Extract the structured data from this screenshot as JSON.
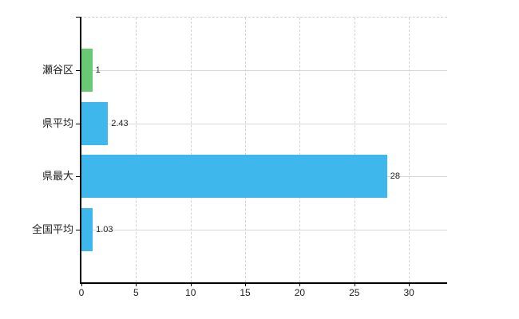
{
  "chart_data": {
    "type": "bar",
    "orientation": "horizontal",
    "title": "",
    "xlabel": "",
    "ylabel": "",
    "categories": [
      "瀬谷区",
      "県平均",
      "県最大",
      "全国平均"
    ],
    "values": [
      1,
      2.43,
      28,
      1.03
    ],
    "value_labels": [
      "1",
      "2.43",
      "28",
      "1.03"
    ],
    "bar_colors": [
      "#69c873",
      "#3eb8ec",
      "#3eb8ec",
      "#3eb8ec"
    ],
    "x_ticks": [
      0,
      5,
      10,
      15,
      20,
      25,
      30
    ],
    "x_tick_labels": [
      "0",
      "5",
      "10",
      "15",
      "20",
      "25",
      "30"
    ],
    "xlim": [
      0,
      33.5
    ],
    "grid": "both",
    "grid_horizontal_style": "solid",
    "grid_vertical_style": "dashed",
    "legend": "none"
  },
  "colors": {
    "bar_green": "#69c873",
    "bar_blue": "#3eb8ec",
    "grid_horizontal": "#d2dad2",
    "grid_vertical": "#d6d1d8",
    "axis": "#000000",
    "text": "#222222",
    "background": "#ffffff"
  }
}
